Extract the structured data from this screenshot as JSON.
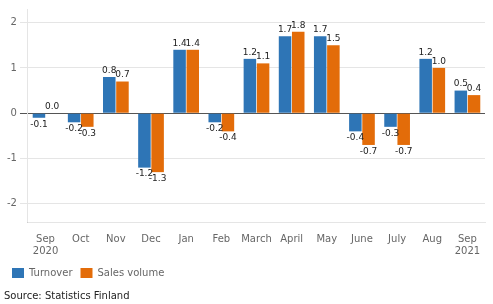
{
  "chart_data": {
    "type": "bar",
    "categories": [
      "Sep\n2020",
      "Oct",
      "Nov",
      "Dec",
      "Jan",
      "Feb",
      "March",
      "April",
      "May",
      "June",
      "July",
      "Aug",
      "Sep\n2021"
    ],
    "series": [
      {
        "name": "Turnover",
        "color": "#2e75b6",
        "values": [
          -0.1,
          -0.2,
          0.8,
          -1.2,
          1.4,
          -0.2,
          1.2,
          1.7,
          1.7,
          -0.4,
          -0.3,
          1.2,
          0.5
        ],
        "value_labels": [
          "-0.1",
          "-0.2",
          "0.8",
          "-1.2",
          "1.4",
          "-0.2",
          "1.2",
          "1.7",
          "1.7",
          "-0.4",
          "-0.3",
          "1.2",
          "0.5"
        ]
      },
      {
        "name": "Sales volume",
        "color": "#e36c09",
        "values": [
          0.0,
          -0.3,
          0.7,
          -1.3,
          1.4,
          -0.4,
          1.1,
          1.8,
          1.5,
          -0.7,
          -0.7,
          1.0,
          0.4
        ],
        "value_labels": [
          "0.0",
          "-0.3",
          "0.7",
          "-1.3",
          "1.4",
          "-0.4",
          "1.1",
          "1.8",
          "1.5",
          "-0.7",
          "-0.7",
          "1.0",
          "0.4"
        ]
      }
    ],
    "ylim": [
      -2.4,
      2.3
    ],
    "yticks": [
      -2,
      -1,
      0,
      1,
      2
    ],
    "grid": true,
    "legend": "lower left",
    "data_labels": true,
    "annotations": [
      "Source: Statistics Finland"
    ]
  }
}
